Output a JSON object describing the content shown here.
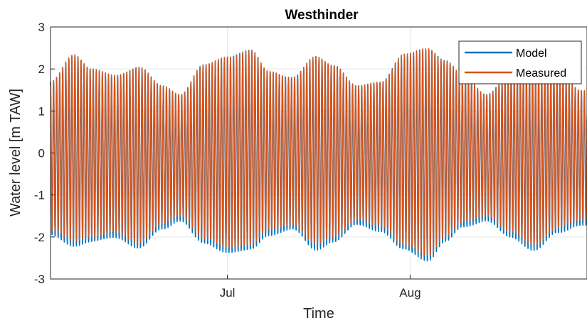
{
  "chart_data": {
    "type": "line",
    "title": "Westhinder",
    "xlabel": "Time",
    "ylabel": "Water level [m TAW]",
    "x_range": [
      "2018-06-01",
      "2018-08-31"
    ],
    "ylim": [
      -3,
      3
    ],
    "yticks": [
      -3,
      -2,
      -1,
      0,
      1,
      2,
      3
    ],
    "xticks": [
      {
        "date": "2018-07-01",
        "label": "Jul"
      },
      {
        "date": "2018-08-01",
        "label": "Aug"
      }
    ],
    "grid": true,
    "legend_position": "top-right",
    "tidal_period_hours": 12.42,
    "envelope": {
      "days_since_start": [
        0,
        4,
        7,
        11,
        15,
        19,
        22,
        26,
        30,
        34,
        37,
        41,
        45,
        48,
        52,
        56,
        60,
        64,
        67,
        70,
        74,
        78,
        82,
        86,
        90
      ],
      "high_water": [
        1.7,
        2.35,
        2.0,
        1.85,
        2.05,
        1.6,
        1.4,
        2.1,
        2.3,
        2.45,
        1.95,
        1.8,
        2.3,
        2.1,
        1.6,
        1.7,
        2.35,
        2.5,
        2.2,
        1.85,
        1.4,
        1.9,
        2.0,
        1.95,
        1.5
      ],
      "low_water": [
        -1.85,
        -2.1,
        -2.0,
        -1.9,
        -2.15,
        -1.7,
        -1.5,
        -2.05,
        -2.25,
        -2.2,
        -1.85,
        -1.7,
        -2.2,
        -2.0,
        -1.6,
        -1.75,
        -2.2,
        -2.45,
        -2.0,
        -1.65,
        -1.5,
        -1.9,
        -2.2,
        -1.8,
        -1.6
      ]
    },
    "series": [
      {
        "name": "Model",
        "color": "#0072BD",
        "low_water_offset": -0.12,
        "phase_offset_hours": 0.0
      },
      {
        "name": "Measured",
        "color": "#D95319",
        "low_water_offset": 0.0,
        "phase_offset_hours": 0.15
      }
    ]
  }
}
